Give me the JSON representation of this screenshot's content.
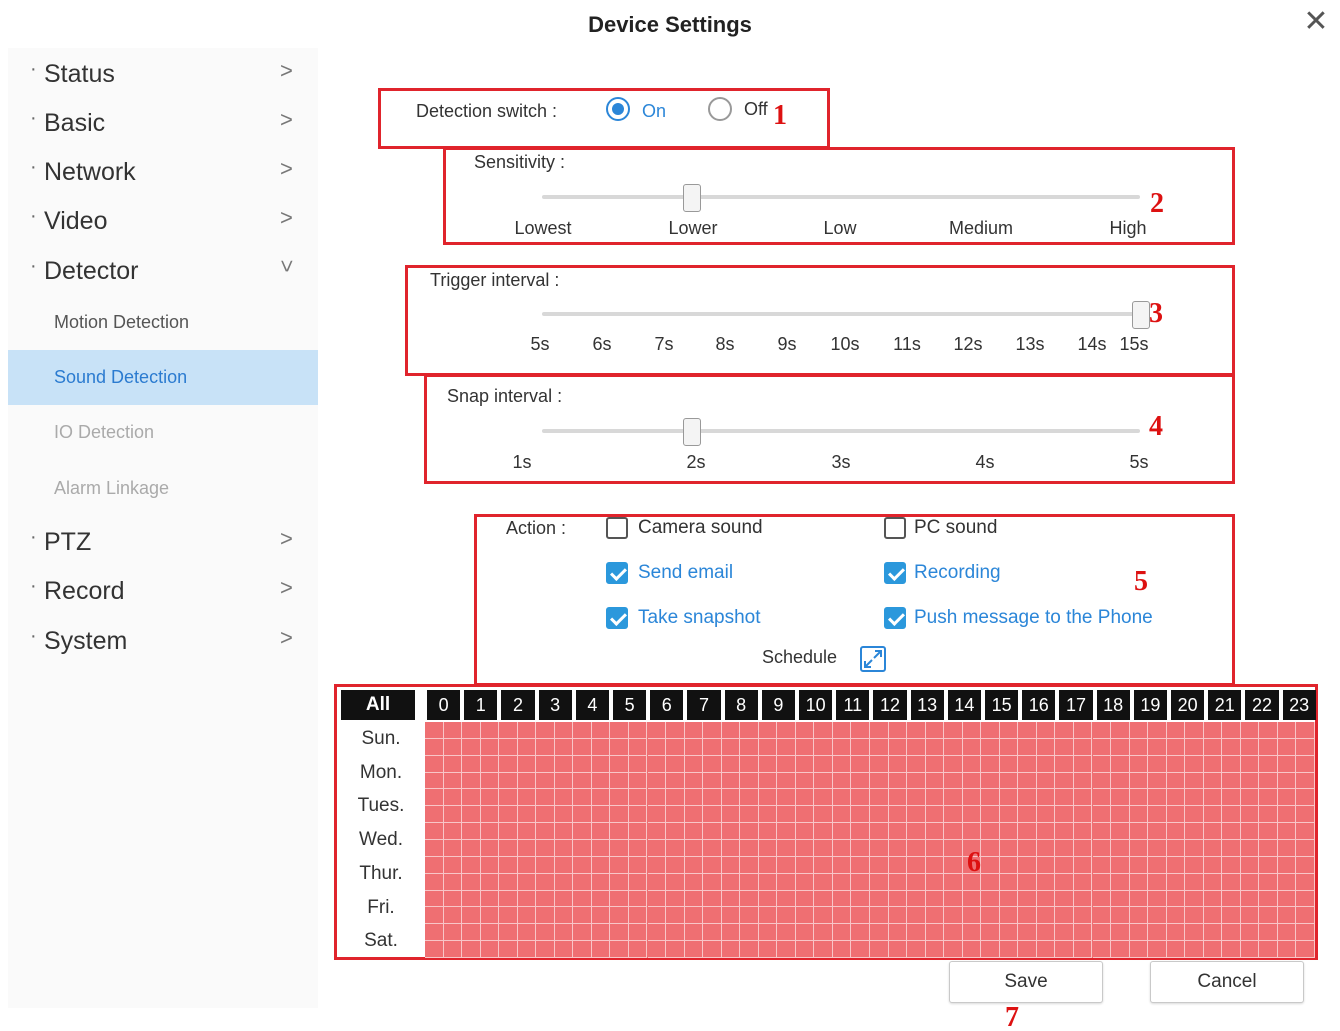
{
  "window": {
    "title": "Device Settings",
    "close_icon": "close-icon"
  },
  "sidebar": {
    "items": [
      {
        "label": "Status",
        "expanded": false
      },
      {
        "label": "Basic",
        "expanded": false
      },
      {
        "label": "Network",
        "expanded": false
      },
      {
        "label": "Video",
        "expanded": false
      },
      {
        "label": "Detector",
        "expanded": true
      }
    ],
    "detector_sub": [
      {
        "label": "Motion Detection",
        "state": "normal"
      },
      {
        "label": "Sound Detection",
        "state": "active"
      },
      {
        "label": "IO Detection",
        "state": "disabled"
      },
      {
        "label": "Alarm Linkage",
        "state": "disabled"
      }
    ],
    "items_after": [
      {
        "label": "PTZ"
      },
      {
        "label": "Record"
      },
      {
        "label": "System"
      }
    ]
  },
  "detection_switch": {
    "label": "Detection switch :",
    "options": [
      "On",
      "Off"
    ],
    "selected": "On"
  },
  "sensitivity": {
    "label": "Sensitivity :",
    "ticks": [
      "Lowest",
      "Lower",
      "Low",
      "Medium",
      "High"
    ],
    "value": "Lower"
  },
  "trigger_interval": {
    "label": "Trigger interval :",
    "ticks": [
      "5s",
      "6s",
      "7s",
      "8s",
      "9s",
      "10s",
      "11s",
      "12s",
      "13s",
      "14s",
      "15s"
    ],
    "value": "15s"
  },
  "snap_interval": {
    "label": "Snap interval :",
    "ticks": [
      "1s",
      "2s",
      "3s",
      "4s",
      "5s"
    ],
    "value": "2s"
  },
  "action": {
    "label": "Action :",
    "options": [
      {
        "label": "Camera sound",
        "checked": false
      },
      {
        "label": "PC sound",
        "checked": false
      },
      {
        "label": "Send email",
        "checked": true
      },
      {
        "label": "Recording",
        "checked": true
      },
      {
        "label": "Take snapshot",
        "checked": true
      },
      {
        "label": "Push message to the Phone",
        "checked": true
      }
    ]
  },
  "schedule": {
    "label": "Schedule",
    "all_label": "All",
    "hours": [
      "0",
      "1",
      "2",
      "3",
      "4",
      "5",
      "6",
      "7",
      "8",
      "9",
      "10",
      "11",
      "12",
      "13",
      "14",
      "15",
      "16",
      "17",
      "18",
      "19",
      "20",
      "21",
      "22",
      "23"
    ],
    "days": [
      "Sun.",
      "Mon.",
      "Tues.",
      "Wed.",
      "Thur.",
      "Fri.",
      "Sat."
    ],
    "all_selected": true,
    "selected_color": "#ef6f72"
  },
  "buttons": {
    "save": "Save",
    "cancel": "Cancel"
  },
  "annotations": [
    "1",
    "2",
    "3",
    "4",
    "5",
    "6",
    "7"
  ],
  "colors": {
    "accent": "#2b86d8",
    "highlight": "#e0242c",
    "active_nav_bg": "#c8e2f7"
  }
}
